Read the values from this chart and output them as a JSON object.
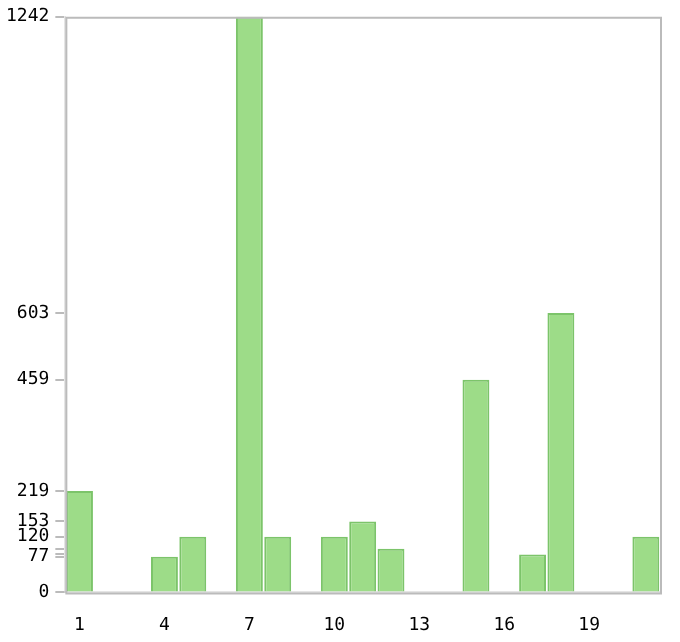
{
  "chart_data": {
    "type": "bar",
    "categories": [
      "1",
      null,
      null,
      "4",
      null,
      null,
      "7",
      null,
      null,
      "10",
      null,
      null,
      "13",
      null,
      null,
      "16",
      null,
      null,
      "19",
      null,
      null
    ],
    "values": [
      219,
      0,
      0,
      77,
      120,
      0,
      1242,
      120,
      0,
      120,
      153,
      94,
      0,
      0,
      459,
      0,
      82,
      603,
      0,
      0,
      120
    ],
    "color": "#9ddc88",
    "ylim": [
      0,
      1242
    ],
    "yticks": [
      0,
      77,
      {
        "value": 82,
        "label": null
      },
      {
        "value": 94,
        "label": null
      },
      120,
      153,
      219,
      459,
      603,
      1242
    ],
    "grid": false,
    "legend": false
  }
}
